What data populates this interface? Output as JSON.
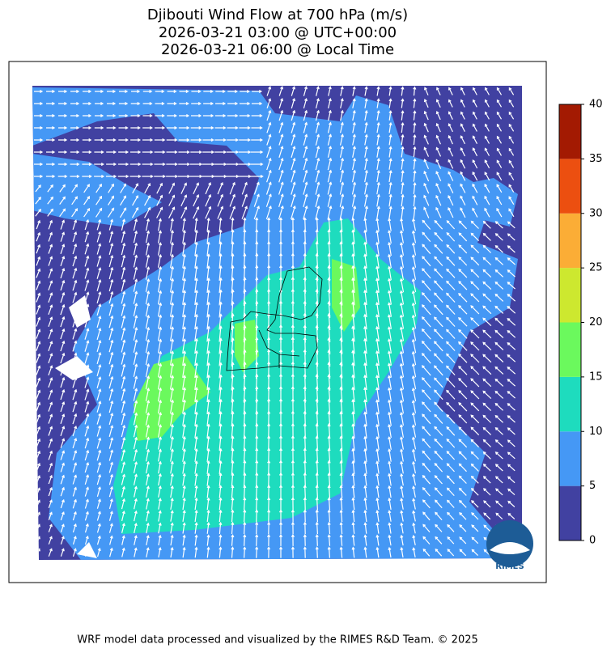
{
  "title_lines": [
    "Djibouti Wind Flow at 700 hPa (m/s)",
    "2026-03-21 03:00 @ UTC+00:00",
    "2026-03-21 06:00 @ Local Time"
  ],
  "colorbar": {
    "ticks": [
      0,
      5,
      10,
      15,
      20,
      25,
      30,
      35,
      40
    ],
    "colors": [
      "#4141a1",
      "#4598f5",
      "#1edcbe",
      "#6bf95d",
      "#cde82f",
      "#fbad36",
      "#ec4f10",
      "#a31a02"
    ]
  },
  "logo_text": "RIMES",
  "footer": "WRF model data processed and visualized by the RIMES R&D Team. © 2025"
}
